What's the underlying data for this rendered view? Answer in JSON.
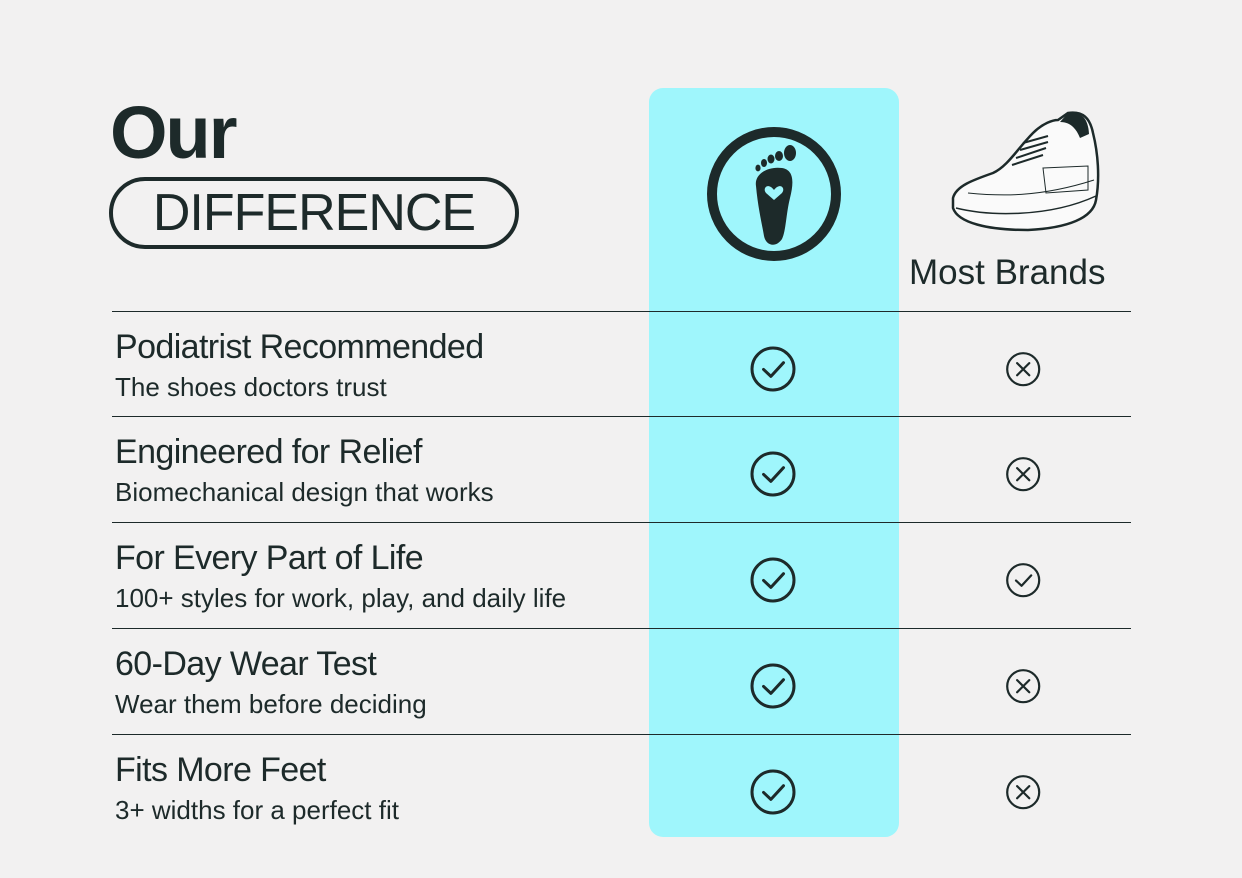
{
  "colors": {
    "background": "#f2f1f1",
    "text": "#1d2a2a",
    "highlight": "#9ff6fc"
  },
  "header": {
    "title_line1": "Our",
    "title_line2": "DIFFERENCE",
    "our_icon": "foot-heart-icon",
    "competitor_icon": "sneaker-icon",
    "competitor_label": "Most Brands"
  },
  "rows": [
    {
      "title": "Podiatrist Recommended",
      "subtitle": "The shoes doctors trust",
      "ours": "check",
      "most_brands": "cross"
    },
    {
      "title": "Engineered for Relief",
      "subtitle": "Biomechanical design that works",
      "ours": "check",
      "most_brands": "cross"
    },
    {
      "title": "For Every Part of Life",
      "subtitle": "100+ styles for work, play, and daily life",
      "ours": "check",
      "most_brands": "check"
    },
    {
      "title": "60-Day Wear Test",
      "subtitle": "Wear them before deciding",
      "ours": "check",
      "most_brands": "cross"
    },
    {
      "title": "Fits More Feet",
      "subtitle": "3+ widths for a perfect fit",
      "ours": "check",
      "most_brands": "cross"
    }
  ]
}
